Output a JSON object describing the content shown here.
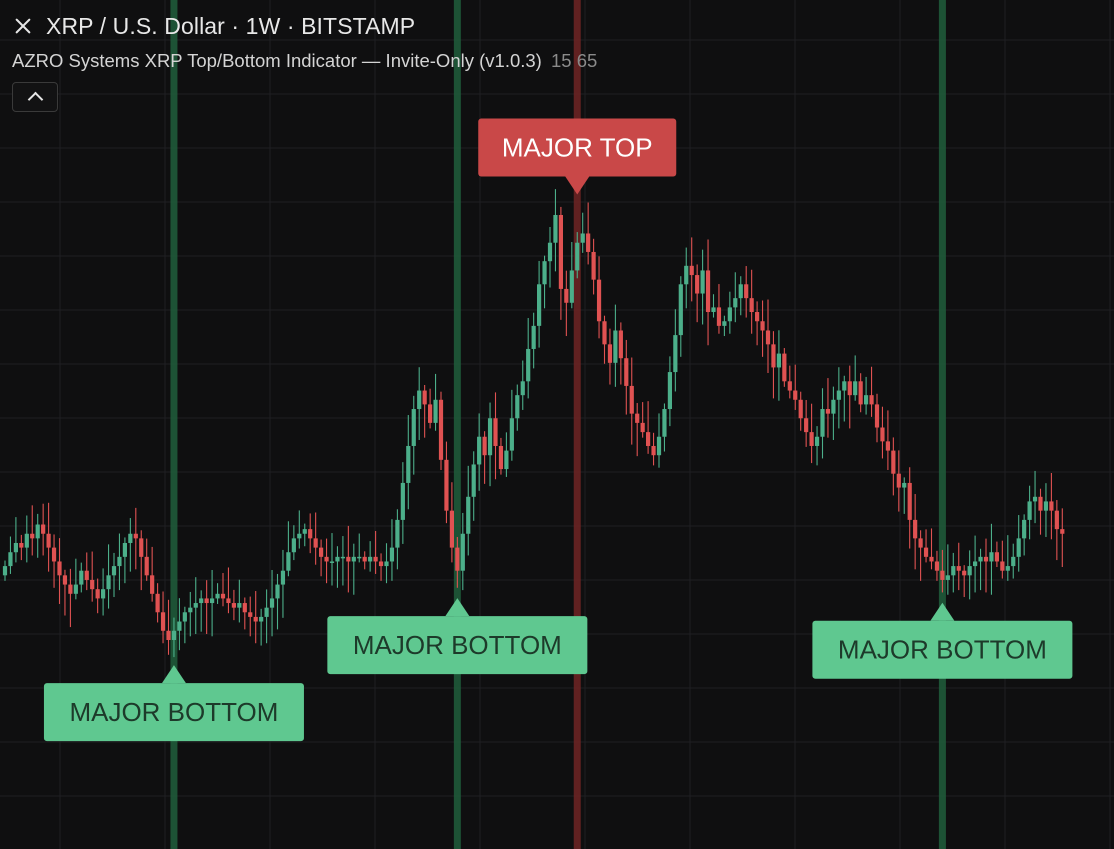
{
  "header": {
    "symbol_title": "XRP / U.S. Dollar · 1W · BITSTAMP",
    "indicator_name": "AZRO Systems XRP Top/Bottom Indicator — Invite-Only (v1.0.3)",
    "indicator_params": "15 65",
    "icons": {
      "close": "close-icon",
      "collapse": "chevron-up-icon"
    }
  },
  "colors": {
    "background": "#0f0f10",
    "grid": "#1f1f22",
    "bullish": "#4caf8a",
    "bearish": "#e05252",
    "bottom_line": "#1f5a3a",
    "top_line": "#6a2424",
    "bottom_label_bg": "#5fc890",
    "top_label_bg": "#c94848",
    "bottom_label_text": "#1d3a2a",
    "top_label_text": "#ffffff"
  },
  "chart_data": {
    "type": "candlestick",
    "ylim": [
      0,
      100
    ],
    "closes": [
      48,
      51,
      53,
      52,
      55,
      54,
      57,
      55,
      52,
      49,
      46,
      44,
      42,
      44,
      47,
      45,
      43,
      41,
      43,
      46,
      48,
      50,
      53,
      55,
      54,
      50,
      46,
      42,
      38,
      34,
      32,
      34,
      36,
      38,
      39,
      40,
      41,
      40,
      41,
      42,
      41,
      40,
      39,
      40,
      38,
      37,
      36,
      37,
      39,
      41,
      44,
      47,
      51,
      54,
      55,
      56,
      54,
      52,
      50,
      49,
      49,
      50,
      50,
      49,
      50,
      50,
      49,
      50,
      49,
      48,
      49,
      52,
      58,
      66,
      74,
      82,
      86,
      83,
      79,
      84,
      71,
      60,
      52,
      47,
      55,
      63,
      70,
      76,
      72,
      80,
      74,
      69,
      73,
      80,
      85,
      88,
      95,
      100,
      109,
      114,
      118,
      124,
      108,
      105,
      112,
      118,
      120,
      116,
      110,
      101,
      96,
      92,
      99,
      93,
      87,
      81,
      79,
      77,
      74,
      72,
      76,
      82,
      90,
      98,
      109,
      113,
      111,
      107,
      112,
      103,
      104,
      100,
      101,
      104,
      106,
      109,
      106,
      103,
      101,
      99,
      96,
      91,
      94,
      88,
      86,
      84,
      80,
      77,
      74,
      76,
      82,
      81,
      84,
      86,
      88,
      85,
      88,
      83,
      85,
      83,
      78,
      75,
      73,
      68,
      65,
      66,
      58,
      54,
      52,
      50,
      49,
      47,
      45,
      46,
      48,
      47,
      46,
      48,
      49,
      50,
      49,
      51,
      49,
      47,
      48,
      50,
      54,
      58,
      62,
      63,
      60,
      62,
      60,
      56,
      55
    ],
    "markers": [
      {
        "type": "bottom",
        "candle": 31,
        "label": "MAJOR BOTTOM"
      },
      {
        "type": "bottom",
        "candle": 83,
        "label": "MAJOR BOTTOM"
      },
      {
        "type": "top",
        "candle": 105,
        "label": "MAJOR TOP"
      },
      {
        "type": "bottom",
        "candle": 172,
        "label": "MAJOR BOTTOM"
      }
    ],
    "grid": true,
    "legend": "none"
  }
}
